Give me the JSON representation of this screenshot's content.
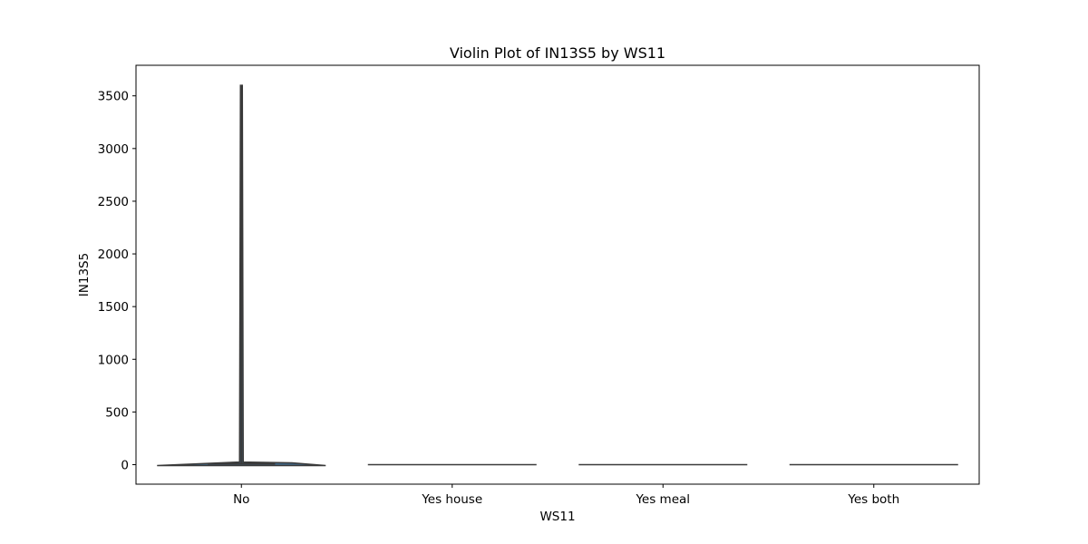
{
  "chart_data": {
    "type": "violin",
    "title": "Violin Plot of IN13S5 by WS11",
    "xlabel": "WS11",
    "ylabel": "IN13S5",
    "categories": [
      "No",
      "Yes house",
      "Yes meal",
      "Yes both"
    ],
    "yticks": [
      "0",
      "500",
      "1000",
      "1500",
      "2000",
      "2500",
      "3000",
      "3500"
    ],
    "ytick_values": [
      0,
      500,
      1000,
      1500,
      2000,
      2500,
      3000,
      3500
    ],
    "ylim": [
      -185,
      3790
    ],
    "grid": false,
    "violins": [
      {
        "category": "No",
        "min": 0,
        "max": 3600,
        "median": 0,
        "density_peak": 25
      },
      {
        "category": "Yes house",
        "min": 0,
        "max": 0,
        "median": 0,
        "density_peak": 0
      },
      {
        "category": "Yes meal",
        "min": 0,
        "max": 0,
        "median": 0,
        "density_peak": 0
      },
      {
        "category": "Yes both",
        "min": 0,
        "max": 0,
        "median": 0,
        "density_peak": 0
      }
    ],
    "colors": {
      "violin_fill": "#3f6482",
      "violin_edge": "#3a3a3a",
      "line": "#3a3a3a"
    }
  }
}
